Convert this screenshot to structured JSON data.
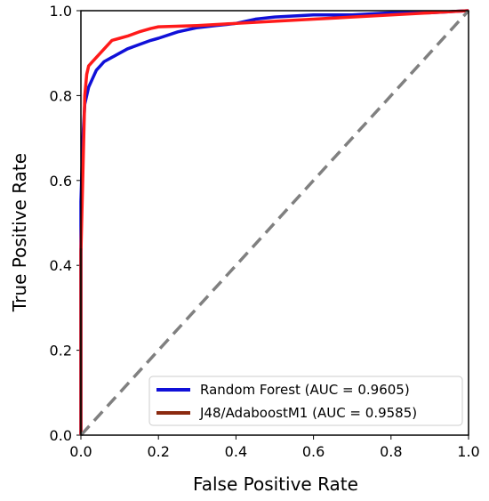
{
  "chart_data": {
    "type": "line",
    "title": "",
    "xlabel": "False Positive Rate",
    "ylabel": "True Positive Rate",
    "xlim": [
      0.0,
      1.0
    ],
    "ylim": [
      0.0,
      1.0
    ],
    "x_ticks": [
      "0.0",
      "0.2",
      "0.4",
      "0.6",
      "0.8",
      "1.0"
    ],
    "y_ticks": [
      "0.0",
      "0.2",
      "0.4",
      "0.6",
      "0.8",
      "1.0"
    ],
    "grid": false,
    "legend_position": "lower-right",
    "legend": [
      {
        "label": "Random Forest (AUC = 0.9605)",
        "color": "#1010d8"
      },
      {
        "label": "J48/AdaboostM1 (AUC = 0.9585)",
        "color": "#8b2a10"
      }
    ],
    "series": [
      {
        "name": "Random Forest (AUC = 0.9605)",
        "color": "#1010d8",
        "x": [
          0.0,
          0.0,
          0.005,
          0.01,
          0.015,
          0.02,
          0.03,
          0.04,
          0.05,
          0.06,
          0.08,
          0.1,
          0.12,
          0.15,
          0.18,
          0.2,
          0.25,
          0.3,
          0.35,
          0.4,
          0.45,
          0.5,
          0.6,
          0.7,
          0.8,
          0.9,
          1.0
        ],
        "y": [
          0.0,
          0.55,
          0.7,
          0.78,
          0.8,
          0.82,
          0.84,
          0.86,
          0.87,
          0.88,
          0.89,
          0.9,
          0.91,
          0.92,
          0.93,
          0.935,
          0.95,
          0.96,
          0.965,
          0.97,
          0.98,
          0.985,
          0.99,
          0.99,
          0.995,
          0.995,
          1.0
        ]
      },
      {
        "name": "Random Forest (AUC = 0.9605)",
        "color": "#ff1a1a",
        "x": [
          0.0,
          0.0,
          0.01,
          0.015,
          0.02,
          0.03,
          0.04,
          0.05,
          0.06,
          0.07,
          0.08,
          0.1,
          0.12,
          0.15,
          0.18,
          0.2,
          0.3,
          0.4,
          0.5,
          0.6,
          0.7,
          0.8,
          0.9,
          1.0
        ],
        "y": [
          0.0,
          0.43,
          0.8,
          0.85,
          0.87,
          0.88,
          0.89,
          0.9,
          0.91,
          0.92,
          0.93,
          0.935,
          0.94,
          0.95,
          0.958,
          0.962,
          0.965,
          0.97,
          0.975,
          0.98,
          0.985,
          0.99,
          0.995,
          1.0
        ]
      },
      {
        "name": "J48/AdaboostM1 (AUC = 0.9585)",
        "color": "#8b2a10",
        "x": [
          0.0,
          0.0
        ],
        "y": [
          0.0,
          0.44
        ]
      },
      {
        "name": "",
        "color": "#808080",
        "x": [
          0.0,
          1.0
        ],
        "y": [
          0.0,
          1.0
        ]
      }
    ]
  }
}
